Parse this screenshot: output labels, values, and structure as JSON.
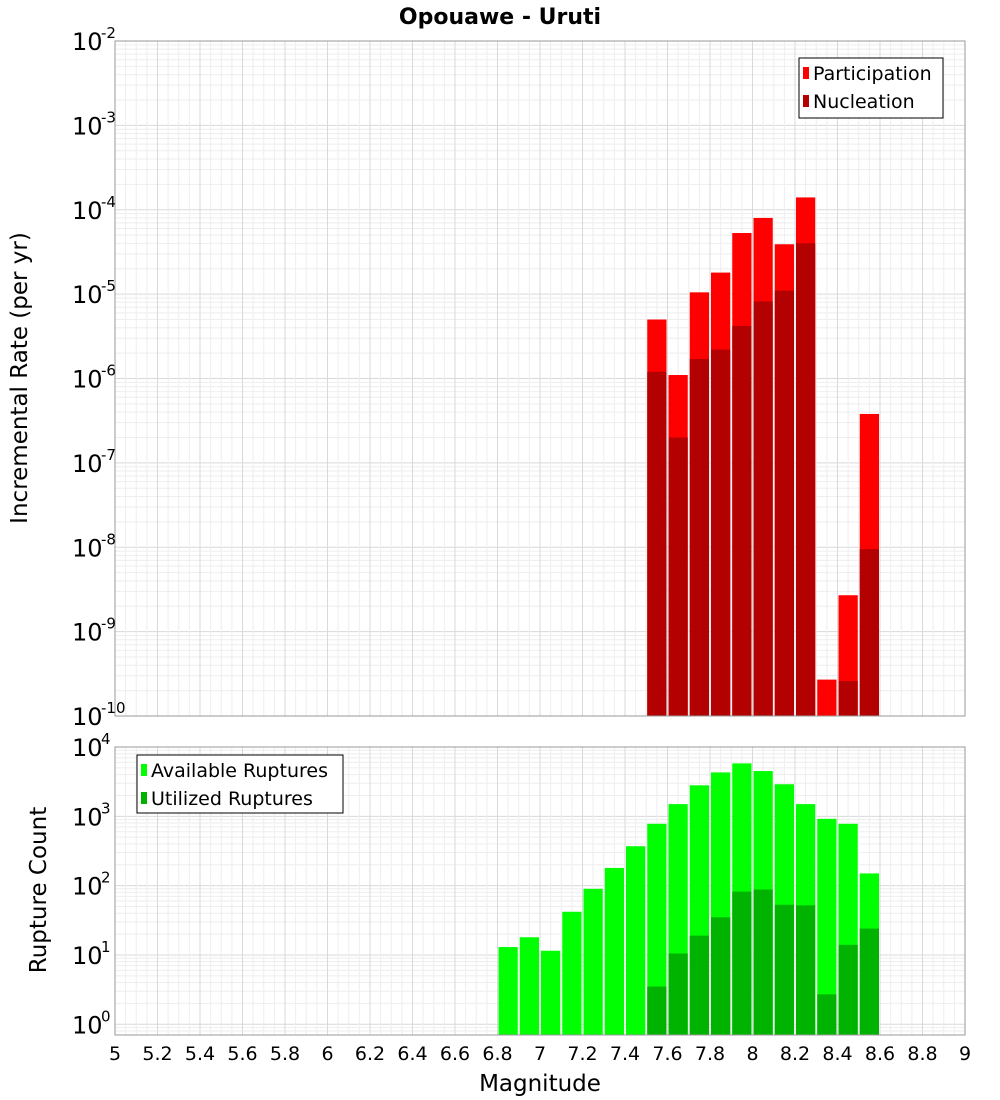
{
  "chart_data": [
    {
      "type": "bar",
      "title": "Opouawe - Uruti",
      "xlabel": "",
      "ylabel": "Incremental Rate (per yr)",
      "yscale": "log",
      "ylim": [
        1e-10,
        0.01
      ],
      "xlim": [
        5,
        9
      ],
      "grid": true,
      "legend_position": "top-right",
      "x": [
        7.55,
        7.65,
        7.75,
        7.85,
        7.95,
        8.05,
        8.15,
        8.25,
        8.35,
        8.45,
        8.55
      ],
      "series": [
        {
          "name": "Participation",
          "color": "#ff0000",
          "values": [
            5e-06,
            1.1e-06,
            1.05e-05,
            1.8e-05,
            5.3e-05,
            8e-05,
            3.9e-05,
            0.00014,
            2.7e-10,
            2.7e-09,
            3.8e-07
          ]
        },
        {
          "name": "Nucleation",
          "color": "#b30000",
          "values": [
            1.2e-06,
            2e-07,
            1.7e-06,
            2.2e-06,
            4.2e-06,
            8.2e-06,
            1.1e-05,
            4e-05,
            null,
            2.6e-10,
            9.5e-09
          ]
        }
      ],
      "y_ticks": [
        {
          "base": "10",
          "exp": "-2",
          "value": 0.01
        },
        {
          "base": "10",
          "exp": "-3",
          "value": 0.001
        },
        {
          "base": "10",
          "exp": "-4",
          "value": 0.0001
        },
        {
          "base": "10",
          "exp": "-5",
          "value": 1e-05
        },
        {
          "base": "10",
          "exp": "-6",
          "value": 1e-06
        },
        {
          "base": "10",
          "exp": "-7",
          "value": 1e-07
        },
        {
          "base": "10",
          "exp": "-8",
          "value": 1e-08
        },
        {
          "base": "10",
          "exp": "-9",
          "value": 1e-09
        },
        {
          "base": "10",
          "exp": "-10",
          "value": 1e-10
        }
      ]
    },
    {
      "type": "bar",
      "xlabel": "Magnitude",
      "ylabel": "Rupture Count",
      "yscale": "log",
      "ylim": [
        0.7,
        10000.0
      ],
      "xlim": [
        5,
        9
      ],
      "grid": true,
      "legend_position": "top-left",
      "x": [
        6.85,
        6.95,
        7.05,
        7.15,
        7.25,
        7.35,
        7.45,
        7.55,
        7.65,
        7.75,
        7.85,
        7.95,
        8.05,
        8.15,
        8.25,
        8.35,
        8.45,
        8.55
      ],
      "series": [
        {
          "name": "Available Ruptures",
          "color": "#00ff00",
          "values": [
            13,
            18,
            11.5,
            42,
            90,
            180,
            370,
            780,
            1500,
            2800,
            4300,
            5800,
            4500,
            2900,
            1500,
            920,
            780,
            150
          ]
        },
        {
          "name": "Utilized Ruptures",
          "color": "#00b300",
          "values": [
            null,
            null,
            null,
            null,
            null,
            null,
            null,
            3.5,
            10.5,
            19,
            35,
            82,
            88,
            53,
            52,
            2.7,
            14,
            24
          ]
        }
      ],
      "y_ticks": [
        {
          "base": "10",
          "exp": "4",
          "value": 10000.0
        },
        {
          "base": "10",
          "exp": "3",
          "value": 1000.0
        },
        {
          "base": "10",
          "exp": "2",
          "value": 100.0
        },
        {
          "base": "10",
          "exp": "1",
          "value": 10.0
        },
        {
          "base": "10",
          "exp": "0",
          "value": 1
        }
      ],
      "x_ticks": [
        "5",
        "5.2",
        "5.4",
        "5.6",
        "5.8",
        "6",
        "6.2",
        "6.4",
        "6.6",
        "6.8",
        "7",
        "7.2",
        "7.4",
        "7.6",
        "7.8",
        "8",
        "8.2",
        "8.4",
        "8.6",
        "8.8",
        "9"
      ],
      "x_tick_values": [
        5,
        5.2,
        5.4,
        5.6,
        5.8,
        6,
        6.2,
        6.4,
        6.6,
        6.8,
        7,
        7.2,
        7.4,
        7.6,
        7.8,
        8,
        8.2,
        8.4,
        8.6,
        8.8,
        9
      ]
    }
  ]
}
